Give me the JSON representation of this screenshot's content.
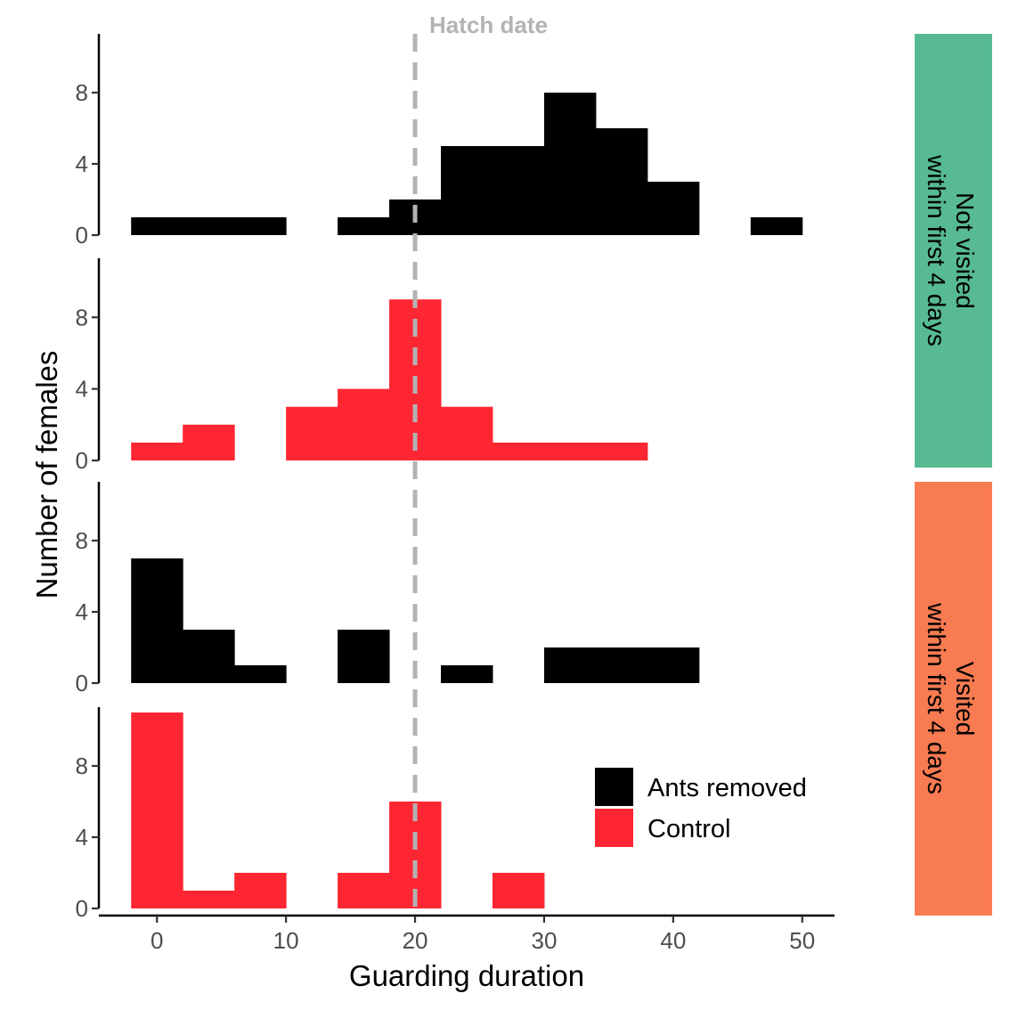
{
  "chart_data": {
    "type": "bar",
    "subtype": "faceted histogram",
    "xlabel": "Guarding duration",
    "ylabel": "Number of females",
    "xlim": [
      -4.5,
      52.5
    ],
    "ylim": [
      0,
      11.3
    ],
    "x_ticks": [
      0,
      10,
      20,
      30,
      40,
      50
    ],
    "y_ticks": [
      0,
      4,
      8
    ],
    "bin_width": 4,
    "colors": {
      "Ants removed": "#000000",
      "Control": "#ff2633"
    },
    "reference_line": {
      "x": 20,
      "label": "Hatch date",
      "color": "#b3b3b3",
      "style": "dashed"
    },
    "legend": {
      "placement": "inside-bottom-right",
      "entries": [
        {
          "label": "Ants removed",
          "color": "#000000"
        },
        {
          "label": "Control",
          "color": "#ff2633"
        }
      ]
    },
    "groups": [
      {
        "label": "Not visited\nwithin first 4 days",
        "color": "#57ba93",
        "panels": [
          0,
          1
        ]
      },
      {
        "label": "Visited\nwithin first 4 days",
        "color": "#f87b52",
        "panels": [
          2,
          3
        ]
      }
    ],
    "panels": [
      {
        "series": "Ants removed",
        "group": "Not visited within first 4 days",
        "bins": [
          [
            -2,
            1
          ],
          [
            2,
            1
          ],
          [
            6,
            1
          ],
          [
            14,
            1
          ],
          [
            18,
            2
          ],
          [
            22,
            5
          ],
          [
            26,
            5
          ],
          [
            30,
            8
          ],
          [
            34,
            6
          ],
          [
            38,
            3
          ],
          [
            46,
            1
          ]
        ]
      },
      {
        "series": "Control",
        "group": "Not visited within first 4 days",
        "bins": [
          [
            -2,
            1
          ],
          [
            2,
            2
          ],
          [
            10,
            3
          ],
          [
            14,
            4
          ],
          [
            18,
            9
          ],
          [
            22,
            3
          ],
          [
            26,
            1
          ],
          [
            30,
            1
          ],
          [
            34,
            1
          ]
        ]
      },
      {
        "series": "Ants removed",
        "group": "Visited within first 4 days",
        "bins": [
          [
            -2,
            7
          ],
          [
            2,
            3
          ],
          [
            6,
            1
          ],
          [
            14,
            3
          ],
          [
            22,
            1
          ],
          [
            30,
            2
          ],
          [
            34,
            2
          ],
          [
            38,
            2
          ]
        ]
      },
      {
        "series": "Control",
        "group": "Visited within first 4 days",
        "bins": [
          [
            -2,
            11
          ],
          [
            2,
            1
          ],
          [
            6,
            2
          ],
          [
            14,
            2
          ],
          [
            18,
            6
          ],
          [
            26,
            2
          ]
        ]
      }
    ]
  }
}
